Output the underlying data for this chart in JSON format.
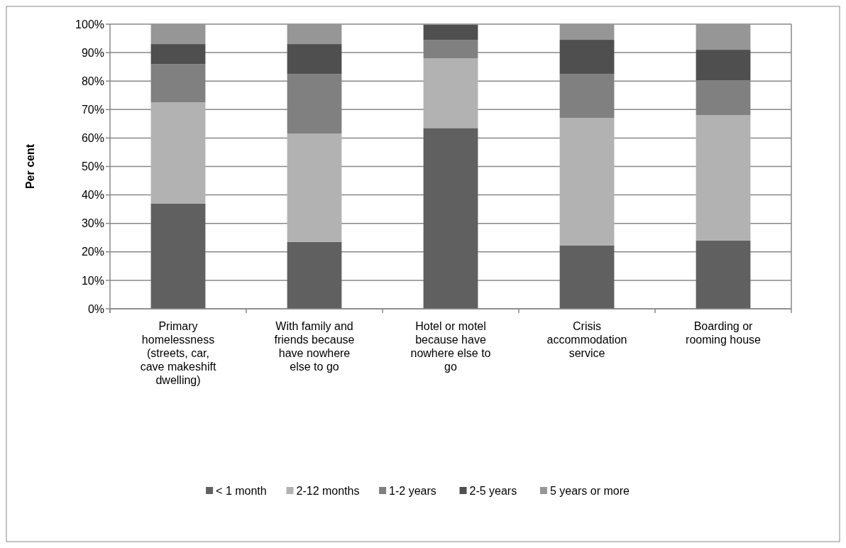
{
  "chart_data": {
    "type": "bar",
    "stacked": true,
    "ylabel": "Per cent",
    "categories": [
      "Primary homelessness (streets, car, cave makeshift dwelling)",
      "With family and friends because have nowhere else to go",
      "Hotel or motel because have nowhere else to go",
      "Crisis accommodation service",
      "Boarding or rooming house"
    ],
    "series": [
      {
        "name": "< 1 month",
        "color": "#606060",
        "values": [
          37,
          23.5,
          63.5,
          22.3,
          24
        ]
      },
      {
        "name": "2-12 months",
        "color": "#b2b2b2",
        "values": [
          35.5,
          38,
          24.5,
          44.7,
          44
        ]
      },
      {
        "name": "1-2 years",
        "color": "#808080",
        "values": [
          13.5,
          21,
          6.5,
          15.5,
          12.3
        ]
      },
      {
        "name": "2-5 years",
        "color": "#4f4f4f",
        "values": [
          7,
          10.5,
          5.3,
          12,
          10.7
        ]
      },
      {
        "name": "5 years or more",
        "color": "#969696",
        "values": [
          7,
          7,
          0.2,
          5.5,
          9
        ]
      }
    ],
    "ylim": [
      0,
      100
    ],
    "yticks": [
      {
        "value": 0,
        "label": "0%"
      },
      {
        "value": 10,
        "label": "10%"
      },
      {
        "value": 20,
        "label": "20%"
      },
      {
        "value": 30,
        "label": "30%"
      },
      {
        "value": 40,
        "label": "40%"
      },
      {
        "value": 50,
        "label": "50%"
      },
      {
        "value": 60,
        "label": "60%"
      },
      {
        "value": 70,
        "label": "70%"
      },
      {
        "value": 80,
        "label": "80%"
      },
      {
        "value": 90,
        "label": "90%"
      },
      {
        "value": 100,
        "label": "100%"
      }
    ],
    "grid": "y",
    "legend": "bottom"
  }
}
